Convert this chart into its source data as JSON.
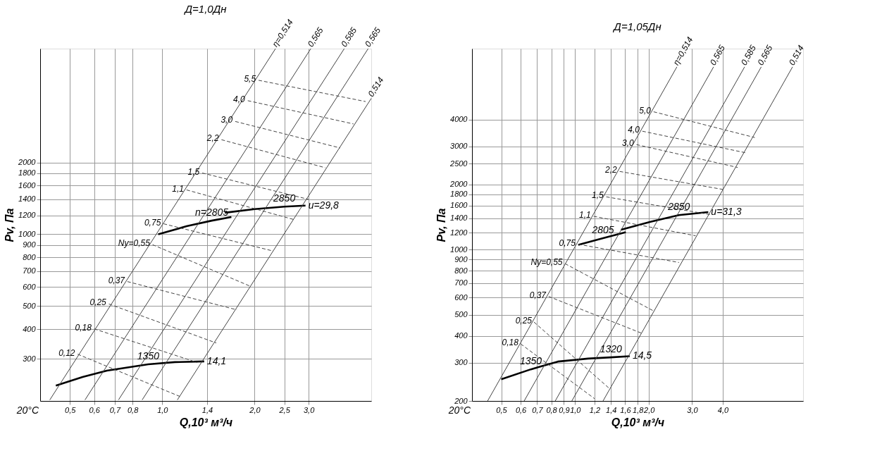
{
  "chart_data": [
    {
      "type": "line",
      "title": "Д=1,0Дн",
      "xlabel": "Q,10³ м³/ч",
      "ylabel": "Pv, Па",
      "log": "xy",
      "grid": true,
      "xlim": [
        0.4,
        4.8
      ],
      "ylim": [
        200,
        6000
      ],
      "xticks": [
        {
          "value": 0.5,
          "label": "0,5"
        },
        {
          "value": 0.6,
          "label": "0,6"
        },
        {
          "value": 0.7,
          "label": "0,7"
        },
        {
          "value": 0.8,
          "label": "0,8"
        },
        {
          "value": 1.0,
          "label": "1,0"
        },
        {
          "value": 1.4,
          "label": "1,4"
        },
        {
          "value": 2.0,
          "label": "2,0"
        },
        {
          "value": 2.5,
          "label": "2,5"
        },
        {
          "value": 3.0,
          "label": "3,0"
        }
      ],
      "yticks": [
        300,
        400,
        500,
        600,
        700,
        800,
        900,
        1000,
        1200,
        1400,
        1600,
        1800,
        2000
      ],
      "series": [
        {
          "color": "#000000",
          "x": [
            0.45,
            0.55,
            0.66,
            0.9,
            1.1,
            1.37
          ],
          "values": [
            232,
            252,
            268,
            285,
            291,
            293
          ]
        },
        {
          "color": "#000000",
          "x": [
            0.97,
            1.2,
            1.45,
            1.68
          ],
          "values": [
            1000,
            1080,
            1140,
            1181
          ]
        },
        {
          "color": "#000000",
          "x": [
            1.6,
            2.0,
            2.5,
            2.93
          ],
          "values": [
            1231,
            1275,
            1305,
            1318
          ]
        },
        {
          "name": "η=0,514",
          "color": "#444444",
          "x": [
            2.34,
            0.43
          ],
          "values": [
            6000,
            202
          ]
        },
        {
          "name": "0,565",
          "color": "#444444",
          "x": [
            3.05,
            0.56
          ],
          "values": [
            6000,
            202
          ]
        },
        {
          "name": "0,585",
          "color": "#444444",
          "x": [
            3.92,
            0.72
          ],
          "values": [
            6000,
            202
          ]
        },
        {
          "name": "0,565",
          "color": "#444444",
          "x": [
            4.69,
            0.86
          ],
          "values": [
            6000,
            202
          ]
        },
        {
          "name": "0,514",
          "color": "#444444",
          "x": [
            4.8,
            1.12
          ],
          "values": [
            3710,
            202
          ]
        },
        {
          "name": "0,12",
          "color": "#444444",
          "line_style": "dashed",
          "x": [
            0.53,
            1.14
          ],
          "values": [
            314,
            209
          ]
        },
        {
          "name": "0,18",
          "color": "#444444",
          "line_style": "dashed",
          "x": [
            0.6,
            1.3
          ],
          "values": [
            401,
            290
          ]
        },
        {
          "name": "0,25",
          "color": "#444444",
          "line_style": "dashed",
          "x": [
            0.67,
            1.5
          ],
          "values": [
            510,
            350
          ]
        },
        {
          "name": "0,37",
          "color": "#444444",
          "line_style": "dashed",
          "x": [
            0.77,
            1.75
          ],
          "values": [
            633,
            482
          ]
        },
        {
          "name": "Ny=0,55",
          "color": "#444444",
          "line_style": "dashed",
          "x": [
            0.93,
            1.92
          ],
          "values": [
            904,
            608
          ]
        },
        {
          "name": "0,75",
          "color": "#444444",
          "line_style": "dashed",
          "x": [
            1.01,
            2.3
          ],
          "values": [
            1106,
            850
          ]
        },
        {
          "name": "1,1",
          "color": "#444444",
          "line_style": "dashed",
          "x": [
            1.2,
            2.7
          ],
          "values": [
            1534,
            1150
          ]
        },
        {
          "name": "1,5",
          "color": "#444444",
          "line_style": "dashed",
          "x": [
            1.35,
            3.0
          ],
          "values": [
            1806,
            1400
          ]
        },
        {
          "name": "2,2",
          "color": "#444444",
          "line_style": "dashed",
          "x": [
            1.56,
            3.4
          ],
          "values": [
            2490,
            1900
          ]
        },
        {
          "name": "3,0",
          "color": "#444444",
          "line_style": "dashed",
          "x": [
            1.73,
            3.8
          ],
          "values": [
            2970,
            2300
          ]
        },
        {
          "name": "4,0",
          "color": "#444444",
          "line_style": "dashed",
          "x": [
            1.9,
            4.2
          ],
          "values": [
            3630,
            2900
          ]
        },
        {
          "name": "5,5",
          "color": "#444444",
          "line_style": "dashed",
          "x": [
            2.06,
            4.6
          ],
          "values": [
            4420,
            3600
          ]
        }
      ],
      "annotations": [
        {
          "text": "1350",
          "x": 0.9,
          "y": 285
        },
        {
          "text": "14,1",
          "x": 1.37,
          "y": 293
        },
        {
          "text": "n=2805",
          "x": 1.45,
          "y": 1140
        },
        {
          "text": "2850",
          "x": 2.5,
          "y": 1305
        },
        {
          "text": "u=29,8",
          "x": 2.93,
          "y": 1318
        },
        "20°C"
      ]
    },
    {
      "type": "line",
      "title": "Д=1,05Дн",
      "xlabel": "Q,10³ м³/ч",
      "ylabel": "Pv, Па",
      "log": "xy",
      "grid": true,
      "xlim": [
        0.38,
        8.5
      ],
      "ylim": [
        200,
        8500
      ],
      "xticks": [
        {
          "value": 0.5,
          "label": "0,5"
        },
        {
          "value": 0.6,
          "label": "0,6"
        },
        {
          "value": 0.7,
          "label": "0,7"
        },
        {
          "value": 0.8,
          "label": "0,8"
        },
        {
          "value": 0.9,
          "label": "0,9"
        },
        {
          "value": 1.0,
          "label": "1,0"
        },
        {
          "value": 1.2,
          "label": "1,2"
        },
        {
          "value": 1.4,
          "label": "1,4"
        },
        {
          "value": 1.6,
          "label": "1,6"
        },
        {
          "value": 1.8,
          "label": "1,8"
        },
        {
          "value": 2.0,
          "label": "2,0"
        },
        {
          "value": 3.0,
          "label": "3,0"
        },
        {
          "value": 4.0,
          "label": "4,0"
        }
      ],
      "yticks": [
        200,
        300,
        400,
        500,
        600,
        700,
        800,
        900,
        1000,
        1200,
        1400,
        1600,
        1800,
        2000,
        2500,
        3000,
        4000
      ],
      "series": [
        {
          "color": "#000000",
          "x": [
            0.5,
            0.66,
            0.85,
            1.13,
            1.4,
            1.67
          ],
          "values": [
            252,
            280,
            304,
            314,
            318,
            322
          ]
        },
        {
          "color": "#000000",
          "x": [
            1.03,
            1.3,
            1.61
          ],
          "values": [
            1053,
            1130,
            1206
          ]
        },
        {
          "color": "#000000",
          "x": [
            1.54,
            2.03,
            2.65,
            3.49
          ],
          "values": [
            1238,
            1346,
            1446,
            1493
          ]
        },
        {
          "name": "η=0,514",
          "color": "#444444",
          "x": [
            2.6,
            0.44
          ],
          "values": [
            7000,
            200
          ]
        },
        {
          "name": "0,565",
          "color": "#444444",
          "x": [
            3.67,
            0.62
          ],
          "values": [
            7000,
            200
          ]
        },
        {
          "name": "0,585",
          "color": "#444444",
          "x": [
            4.91,
            0.83
          ],
          "values": [
            7000,
            200
          ]
        },
        {
          "name": "0,565",
          "color": "#444444",
          "x": [
            5.74,
            0.97
          ],
          "values": [
            7000,
            200
          ]
        },
        {
          "name": "0,514",
          "color": "#444444",
          "x": [
            7.7,
            1.3
          ],
          "values": [
            7000,
            200
          ]
        },
        {
          "name": "0,18",
          "color": "#444444",
          "line_style": "dashed",
          "x": [
            0.6,
            1.2
          ],
          "values": [
            367,
            205
          ]
        },
        {
          "name": "0,25",
          "color": "#444444",
          "line_style": "dashed",
          "x": [
            0.68,
            1.37
          ],
          "values": [
            463,
            230
          ]
        },
        {
          "name": "0,37",
          "color": "#444444",
          "line_style": "dashed",
          "x": [
            0.78,
            1.86
          ],
          "values": [
            608,
            412
          ]
        },
        {
          "name": "Ny=0,55",
          "color": "#444444",
          "line_style": "dashed",
          "x": [
            0.91,
            2.09
          ],
          "values": [
            862,
            521
          ]
        },
        {
          "name": "0,75",
          "color": "#444444",
          "line_style": "dashed",
          "x": [
            1.03,
            2.65
          ],
          "values": [
            1060,
            873
          ]
        },
        {
          "name": "1,1",
          "color": "#444444",
          "line_style": "dashed",
          "x": [
            1.19,
            3.1
          ],
          "values": [
            1427,
            1160
          ]
        },
        {
          "name": "1,5",
          "color": "#444444",
          "line_style": "dashed",
          "x": [
            1.34,
            3.6
          ],
          "values": [
            1755,
            1450
          ]
        },
        {
          "name": "2,2",
          "color": "#444444",
          "line_style": "dashed",
          "x": [
            1.52,
            4.0
          ],
          "values": [
            2300,
            1900
          ]
        },
        {
          "name": "3,0",
          "color": "#444444",
          "line_style": "dashed",
          "x": [
            1.78,
            4.6
          ],
          "values": [
            3060,
            2400
          ]
        },
        {
          "name": "4,0",
          "color": "#444444",
          "line_style": "dashed",
          "x": [
            1.88,
            5.0
          ],
          "values": [
            3530,
            2800
          ]
        },
        {
          "name": "5,0",
          "color": "#444444",
          "line_style": "dashed",
          "x": [
            2.09,
            5.4
          ],
          "values": [
            4340,
            3300
          ]
        }
      ],
      "annotations": [
        {
          "text": "1350",
          "x": 0.66,
          "y": 280
        },
        {
          "text": "1320",
          "x": 1.4,
          "y": 318
        },
        {
          "text": "14,5",
          "x": 1.67,
          "y": 322
        },
        {
          "text": "2805",
          "x": 1.3,
          "y": 1130
        },
        {
          "text": "2850",
          "x": 2.65,
          "y": 1446
        },
        {
          "text": "u=31,3",
          "x": 3.49,
          "y": 1493
        },
        "20°C"
      ]
    }
  ]
}
